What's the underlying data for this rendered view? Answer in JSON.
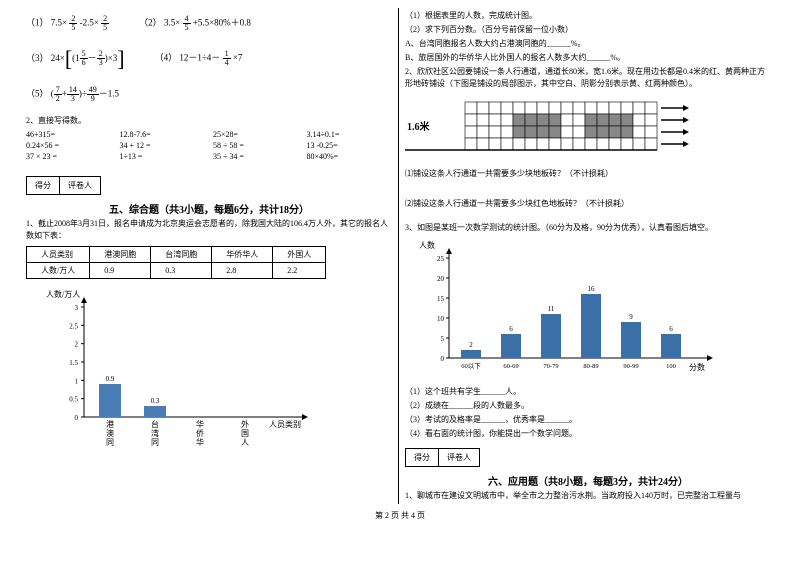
{
  "left": {
    "formulas": {
      "f1": {
        "label": "（1）",
        "expr_a": "7.5×",
        "frac1": {
          "n": "2",
          "d": "5"
        },
        "expr_b": "-2.5×",
        "frac2": {
          "n": "2",
          "d": "5"
        }
      },
      "f2": {
        "label": "（2）",
        "expr_a": "3.5×",
        "frac1": {
          "n": "4",
          "d": "5"
        },
        "expr_b": "+5.5×80%＋0.8"
      },
      "f3": {
        "label": "（3）",
        "expr_a": "24×",
        "frac1": {
          "n": "5",
          "d": "6"
        },
        "frac2": {
          "n": "2",
          "d": "3"
        },
        "expr_b": "×3"
      },
      "f4": {
        "label": "（4）",
        "expr_a": "12－1÷4－",
        "frac1": {
          "n": "1",
          "d": "4"
        },
        "expr_b": "×7"
      },
      "f5": {
        "label": "（5）",
        "frac1": {
          "n": "7",
          "d": "2"
        },
        "frac2": {
          "n": "14",
          "d": "3"
        },
        "frac3": {
          "n": "49",
          "d": "9"
        },
        "expr": "－1.5"
      }
    },
    "mental_title": "2、直接写得数。",
    "mental": [
      "46+315=",
      "12.8-7.6=",
      "25×28=",
      "3.14÷0.1=",
      "0.24×56 =",
      "34 + 12 =",
      "58 ÷ 58 =",
      "13 -0.25=",
      "37 × 23 =",
      "1÷13 =",
      "35 ÷ 34 =",
      "80×40%="
    ],
    "score": {
      "s1": "得分",
      "s2": "评卷人"
    },
    "section5_title": "五、综合题（共3小题，每题6分，共计18分）",
    "q1_text": "1、截止2008年3月31日，报名申请成为北京奥运会志愿者的，除我国大陆的106.4万人外，其它的报名人数如下表：",
    "table": {
      "h1": "人员类别",
      "h2": "港澳同胞",
      "h3": "台湾同胞",
      "h4": "华侨华人",
      "h5": "外国人",
      "r1": "人数/万人",
      "r2": "0.9",
      "r3": "0.3",
      "r4": "2.8",
      "r5": "2.2"
    },
    "ylabel": "人数/万人",
    "yticks": [
      "3",
      "2.5",
      "2",
      "1.5",
      "1",
      "0.5",
      "0"
    ],
    "xlabel": "人员类别",
    "bars": [
      {
        "label": "港澳同胞",
        "value": 0.9,
        "text": "0.9",
        "color": "#4a7db5"
      },
      {
        "label": "台湾同胞",
        "value": 0.3,
        "text": "0.3",
        "color": "#4a7db5"
      },
      {
        "label": "华侨华人",
        "value": 0,
        "text": "",
        "color": "#4a7db5"
      },
      {
        "label": "外国人",
        "value": 0,
        "text": "",
        "color": "#4a7db5"
      }
    ]
  },
  "right": {
    "q1_lines": [
      "（1）根据表里的人数，完成统计图。",
      "（2）求下列百分数。（百分号前保留一位小数）",
      "A、台湾同胞报名人数大约占港澳同胞的______%。",
      "B、旅居国外的华侨华人比外国人的报名人数多大约______%。"
    ],
    "q2_text": "2、欣欣社区公园要铺设一条人行通道，通道长80米，宽1.6米。现在用边长都是0.4米的红、黄两种正方形地砖铺设（下图是铺设的局部图示，其中空白、阴影分别表示黄、红两种颜色）。",
    "diagram_label": "1.6米",
    "q2_sub1": "⑴铺设这条人行通道一共需要多少块地板砖？（不计损耗）",
    "q2_sub2": "⑵铺设这条人行通道一共需要多少块红色地板砖？（不计损耗）",
    "q3_text": "3、如图是某班一次数学测试的统计图。（60分为及格，90分为优秀），认真看图后填空。",
    "chart3": {
      "ylabel": "人数",
      "yticks": [
        "25",
        "20",
        "15",
        "10",
        "5",
        "0"
      ],
      "xlabel": "分数",
      "bars": [
        {
          "label": "60以下",
          "value": 2,
          "text": "2"
        },
        {
          "label": "60-69",
          "value": 6,
          "text": "6"
        },
        {
          "label": "70-79",
          "value": 11,
          "text": "11"
        },
        {
          "label": "80-89",
          "value": 16,
          "text": "16"
        },
        {
          "label": "90-99",
          "value": 9,
          "text": "9"
        },
        {
          "label": "100",
          "value": 6,
          "text": "6"
        }
      ],
      "color": "#3b6fa8"
    },
    "q3_lines": [
      "（1）这个班共有学生______人。",
      "（2）成绩在______段的人数最多。",
      "（3）考试的及格率是______，优秀率是______。",
      "（4）看右面的统计图，你能提出一个数学问题。"
    ],
    "score": {
      "s1": "得分",
      "s2": "评卷人"
    },
    "section6_title": "六、应用题（共8小题，每题3分，共计24分）",
    "q6_text": "1、聊城市在建设文明城市中，举全市之力整治污水荆。当政府投入140万时，已完整治工程量与"
  },
  "footer": "第 2 页 共 4 页"
}
